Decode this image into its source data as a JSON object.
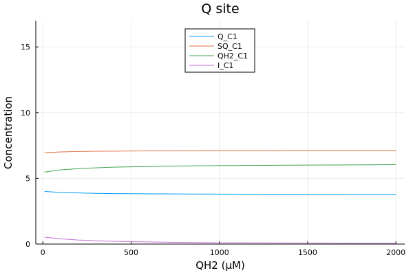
{
  "chart_data": {
    "type": "line",
    "title": "Q site",
    "xlabel": "QH2 (μM)",
    "ylabel": "Concentration",
    "xlim": [
      -40,
      2050
    ],
    "ylim": [
      0,
      17
    ],
    "xticks": [
      0,
      500,
      1000,
      1500,
      2000
    ],
    "yticks": [
      0,
      5,
      10,
      15
    ],
    "grid": true,
    "legend_position": "top-center",
    "series": [
      {
        "name": "Q_C1",
        "color": "#009af9",
        "x": [
          10,
          100,
          200,
          300,
          400,
          500,
          750,
          1000,
          1250,
          1500,
          1750,
          2000
        ],
        "y": [
          4.0,
          3.93,
          3.89,
          3.86,
          3.84,
          3.83,
          3.81,
          3.8,
          3.79,
          3.79,
          3.78,
          3.78
        ]
      },
      {
        "name": "SQ_C1",
        "color": "#e26f46",
        "x": [
          10,
          100,
          200,
          300,
          400,
          500,
          750,
          1000,
          1250,
          1500,
          1750,
          2000
        ],
        "y": [
          6.95,
          7.01,
          7.04,
          7.06,
          7.07,
          7.08,
          7.1,
          7.11,
          7.11,
          7.12,
          7.12,
          7.12
        ]
      },
      {
        "name": "QH2_C1",
        "color": "#3ea44e",
        "x": [
          10,
          100,
          200,
          300,
          400,
          500,
          750,
          1000,
          1250,
          1500,
          1750,
          2000
        ],
        "y": [
          5.48,
          5.64,
          5.74,
          5.8,
          5.85,
          5.88,
          5.94,
          5.97,
          5.99,
          6.01,
          6.02,
          6.04
        ]
      },
      {
        "name": "I_C1",
        "color": "#c270d2",
        "x": [
          10,
          100,
          200,
          300,
          400,
          500,
          750,
          1000,
          1250,
          1500,
          1750,
          2000
        ],
        "y": [
          0.52,
          0.4,
          0.31,
          0.25,
          0.21,
          0.18,
          0.13,
          0.1,
          0.09,
          0.07,
          0.06,
          0.06
        ]
      }
    ]
  }
}
